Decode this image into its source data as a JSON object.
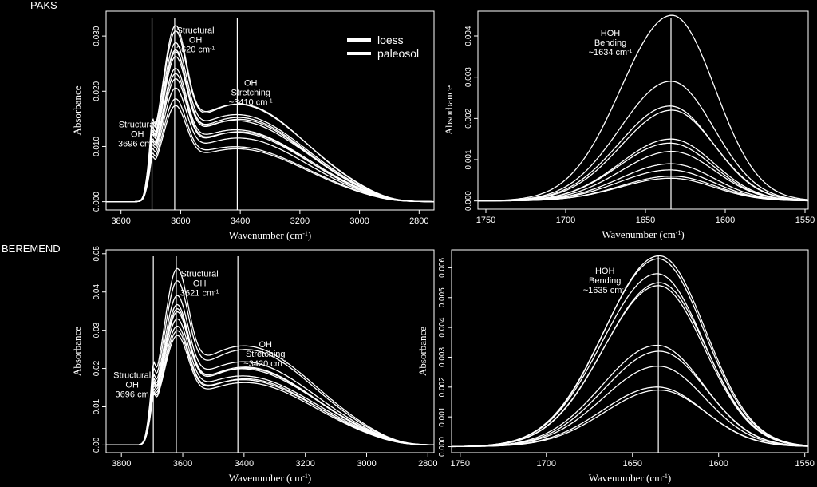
{
  "figure": {
    "site_top": "PAKS",
    "site_bottom": "BEREMEND"
  },
  "chart_data": [
    {
      "id": "paks_oh",
      "type": "line",
      "xlabel": "Wavenumber (cm-1)",
      "ylabel": "Absorbance",
      "xlim": [
        3850,
        2750
      ],
      "ylim": [
        -0.0015,
        0.0345
      ],
      "xticks": [
        3800,
        3600,
        3400,
        3200,
        3000,
        2800
      ],
      "yticks": [
        0.0,
        0.01,
        0.02,
        0.03
      ],
      "ytick_labels": [
        "0.000",
        "0.010",
        "0.020",
        "0.030"
      ],
      "legend": {
        "placement": "top-right",
        "entries": [
          "loess",
          "paleosol"
        ]
      },
      "vlines": [
        3696,
        3620,
        3410
      ],
      "annotations": [
        {
          "lines": [
            "Structural",
            "OH",
            "3696 cm-1"
          ],
          "x": 3745,
          "y": 0.0135
        },
        {
          "lines": [
            "Structural",
            "OH",
            "3620 cm-1"
          ],
          "x": 3550,
          "y": 0.0305
        },
        {
          "lines": [
            "OH",
            "Stretching",
            "~3410 cm-1"
          ],
          "x": 3365,
          "y": 0.021
        }
      ],
      "series_peak_values": [
        0.032,
        0.0305,
        0.029,
        0.028,
        0.027,
        0.026,
        0.0245,
        0.0235,
        0.022,
        0.0205,
        0.019,
        0.0175
      ]
    },
    {
      "id": "paks_hoh",
      "type": "line",
      "xlabel": "Wavenumber (cm-1)",
      "ylabel": "Absorbance",
      "xlim": [
        1755,
        1548
      ],
      "ylim": [
        -0.0002,
        0.0046
      ],
      "xticks": [
        1750,
        1700,
        1650,
        1600,
        1550
      ],
      "yticks": [
        0.0,
        0.001,
        0.002,
        0.003,
        0.004
      ],
      "ytick_labels": [
        "0.000",
        "0.001",
        "0.002",
        "0.003",
        "0.004"
      ],
      "vlines": [
        1634
      ],
      "annotations": [
        {
          "lines": [
            "HOH",
            "Bending",
            "~1634 cm-1"
          ],
          "x": 1672,
          "y": 0.004
        }
      ],
      "series_peak_values": [
        0.0045,
        0.0029,
        0.0023,
        0.0022,
        0.0015,
        0.0014,
        0.0012,
        0.0009,
        0.00075,
        0.0006,
        0.00055
      ]
    },
    {
      "id": "beremend_oh",
      "type": "line",
      "xlabel": "Wavenumber (cm-1)",
      "ylabel": "Absorbance",
      "xlim": [
        3850,
        2780
      ],
      "ylim": [
        -0.002,
        0.051
      ],
      "xticks": [
        3800,
        3600,
        3400,
        3200,
        3000,
        2800
      ],
      "yticks": [
        0.0,
        0.01,
        0.02,
        0.03,
        0.04,
        0.05
      ],
      "ytick_labels": [
        "0.00",
        "0.01",
        "0.02",
        "0.03",
        "0.04",
        "0.05"
      ],
      "vlines": [
        3696,
        3621,
        3420
      ],
      "annotations": [
        {
          "lines": [
            "Structural",
            "OH",
            "3696 cm"
          ],
          "x": 3765,
          "y": 0.0175
        },
        {
          "lines": [
            "Structural",
            "OH",
            "3621 cm-1"
          ],
          "x": 3545,
          "y": 0.044
        },
        {
          "lines": [
            "OH",
            "Stretching",
            "~3420 cm-1"
          ],
          "x": 3330,
          "y": 0.0255
        }
      ],
      "series_peak_values": [
        0.047,
        0.043,
        0.04,
        0.038,
        0.036,
        0.035,
        0.034,
        0.032,
        0.03,
        0.029
      ]
    },
    {
      "id": "beremend_hoh",
      "type": "line",
      "xlabel": "Wavenumber (cm-1)",
      "ylabel": "Absorbance",
      "xlim": [
        1755,
        1548
      ],
      "ylim": [
        -0.0002,
        0.0066
      ],
      "xticks": [
        1750,
        1700,
        1650,
        1600,
        1550
      ],
      "yticks": [
        0.0,
        0.001,
        0.002,
        0.003,
        0.004,
        0.005,
        0.006
      ],
      "ytick_labels": [
        "0.000",
        "0.001",
        "0.002",
        "0.003",
        "0.004",
        "0.005",
        "0.006"
      ],
      "vlines": [
        1635
      ],
      "annotations": [
        {
          "lines": [
            "HOH",
            "Bending",
            "~1635 cm-1"
          ],
          "x": 1666,
          "y": 0.0058
        }
      ],
      "series_peak_values": [
        0.0064,
        0.0063,
        0.0058,
        0.0055,
        0.0054,
        0.0034,
        0.0032,
        0.0027,
        0.002,
        0.0019
      ]
    }
  ]
}
